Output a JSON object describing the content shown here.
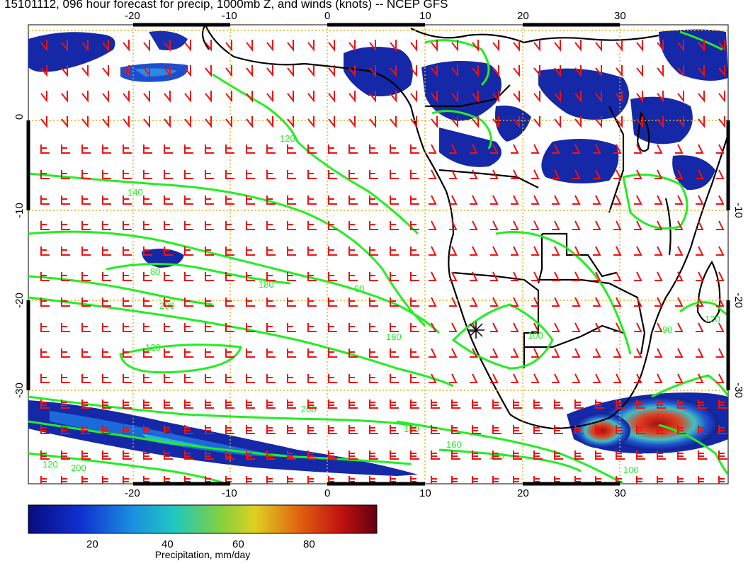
{
  "title": "15101112, 096 hour forecast for precip, 1000mb Z, and winds (knots) -- NCEP GFS",
  "map": {
    "lon_ticks": [
      "-20",
      "-10",
      "0",
      "10",
      "20",
      "30"
    ],
    "lat_ticks": [
      "0",
      "-10",
      "-20",
      "-30"
    ],
    "contour_labels": [
      "120",
      "140",
      "80",
      "180",
      "200",
      "160",
      "120",
      "100",
      "60",
      "180",
      "200",
      "160",
      "100",
      "120",
      "90",
      "120",
      "100",
      "200"
    ],
    "colors": {
      "ocean": "#ffffff",
      "grid": "#e0b21a",
      "contour": "#22ee22",
      "barb": "#ee1111",
      "coast": "#000000"
    }
  },
  "colorbar": {
    "ticks": [
      "20",
      "40",
      "60",
      "80"
    ],
    "label": "Precipitation, mm/day",
    "range": [
      0,
      100
    ]
  }
}
